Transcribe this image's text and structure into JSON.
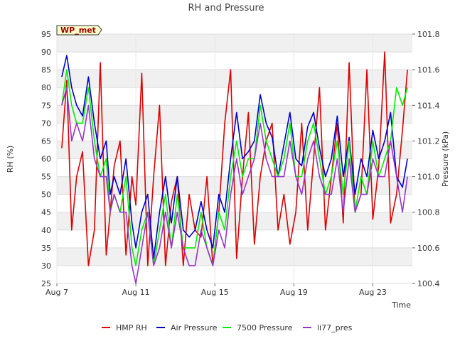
{
  "chart_data": {
    "type": "line",
    "title": "RH and Pressure",
    "badge": "WP_met",
    "xlabel": "Time",
    "ylabel_left": "RH (%)",
    "ylabel_right": "Pressure (kPa)",
    "x_range_days": [
      7.0,
      25.0
    ],
    "x_ticks": [
      {
        "day": 7,
        "label": "Aug 7"
      },
      {
        "day": 11,
        "label": "Aug 11"
      },
      {
        "day": 15,
        "label": "Aug 15"
      },
      {
        "day": 19,
        "label": "Aug 19"
      },
      {
        "day": 23,
        "label": "Aug 23"
      }
    ],
    "ylim_left": [
      25,
      95
    ],
    "yticks_left": [
      25,
      30,
      35,
      40,
      45,
      50,
      55,
      60,
      65,
      70,
      75,
      80,
      85,
      90,
      95
    ],
    "ylim_right": [
      100.4,
      101.8
    ],
    "yticks_right": [
      100.4,
      100.6,
      100.8,
      101.0,
      101.2,
      101.4,
      101.6,
      101.8
    ],
    "grid": true,
    "legend_position": "bottom",
    "series": [
      {
        "name": "HMP RH",
        "axis": "left",
        "color": "#dd0000",
        "x": [
          7.25,
          7.5,
          7.75,
          8.0,
          8.3,
          8.6,
          8.9,
          9.2,
          9.5,
          9.7,
          9.9,
          10.2,
          10.5,
          10.8,
          11.0,
          11.3,
          11.6,
          11.9,
          12.2,
          12.5,
          12.8,
          13.1,
          13.4,
          13.7,
          14.0,
          14.3,
          14.6,
          14.9,
          15.2,
          15.5,
          15.8,
          16.1,
          16.4,
          16.7,
          17.0,
          17.3,
          17.6,
          17.9,
          18.2,
          18.5,
          18.8,
          19.1,
          19.4,
          19.7,
          20.0,
          20.3,
          20.6,
          20.9,
          21.2,
          21.5,
          21.8,
          22.1,
          22.4,
          22.7,
          23.0,
          23.3,
          23.6,
          23.9,
          24.2,
          24.5,
          24.75
        ],
        "y": [
          63,
          82,
          40,
          55,
          62,
          30,
          40,
          87,
          33,
          45,
          58,
          65,
          33,
          55,
          47,
          84,
          30,
          55,
          75,
          30,
          48,
          55,
          30,
          50,
          40,
          38,
          55,
          30,
          45,
          70,
          85,
          32,
          55,
          73,
          36,
          55,
          65,
          70,
          40,
          50,
          36,
          45,
          70,
          40,
          60,
          80,
          40,
          55,
          70,
          42,
          87,
          45,
          50,
          85,
          43,
          58,
          90,
          42,
          50,
          68,
          85
        ]
      },
      {
        "name": "Air Pressure",
        "axis": "left",
        "color": "#0000cc",
        "x": [
          7.25,
          7.5,
          7.75,
          8.0,
          8.3,
          8.6,
          8.9,
          9.2,
          9.5,
          9.7,
          9.9,
          10.2,
          10.5,
          10.8,
          11.0,
          11.3,
          11.6,
          11.9,
          12.2,
          12.5,
          12.8,
          13.1,
          13.4,
          13.7,
          14.0,
          14.3,
          14.6,
          14.9,
          15.2,
          15.5,
          15.8,
          16.1,
          16.4,
          16.7,
          17.0,
          17.3,
          17.6,
          17.9,
          18.2,
          18.5,
          18.8,
          19.1,
          19.4,
          19.7,
          20.0,
          20.3,
          20.6,
          20.9,
          21.2,
          21.5,
          21.8,
          22.1,
          22.4,
          22.7,
          23.0,
          23.3,
          23.6,
          23.9,
          24.2,
          24.5,
          24.75
        ],
        "y": [
          83,
          89,
          80,
          75,
          72,
          83,
          70,
          60,
          65,
          50,
          55,
          50,
          60,
          42,
          35,
          45,
          50,
          32,
          45,
          55,
          42,
          55,
          40,
          38,
          40,
          48,
          40,
          35,
          50,
          45,
          60,
          73,
          60,
          62,
          65,
          78,
          70,
          66,
          55,
          64,
          73,
          60,
          58,
          69,
          73,
          63,
          55,
          60,
          72,
          55,
          66,
          50,
          60,
          55,
          68,
          60,
          65,
          73,
          55,
          52,
          60
        ]
      },
      {
        "name": "7500 Pressure",
        "axis": "left",
        "color": "#00ee00",
        "x": [
          7.25,
          7.5,
          7.75,
          8.0,
          8.3,
          8.6,
          8.9,
          9.2,
          9.5,
          9.7,
          9.9,
          10.2,
          10.5,
          10.8,
          11.0,
          11.3,
          11.6,
          11.9,
          12.2,
          12.5,
          12.8,
          13.1,
          13.4,
          13.7,
          14.0,
          14.3,
          14.6,
          14.9,
          15.2,
          15.5,
          15.8,
          16.1,
          16.4,
          16.7,
          17.0,
          17.3,
          17.6,
          17.9,
          18.2,
          18.5,
          18.8,
          19.1,
          19.4,
          19.7,
          20.0,
          20.3,
          20.6,
          20.9,
          21.2,
          21.5,
          21.8,
          22.1,
          22.4,
          22.7,
          23.0,
          23.3,
          23.6,
          23.9,
          24.2,
          24.5,
          24.75
        ],
        "y": [
          75,
          85,
          75,
          70,
          70,
          80,
          65,
          55,
          60,
          45,
          50,
          45,
          55,
          35,
          30,
          40,
          45,
          30,
          40,
          50,
          35,
          50,
          35,
          35,
          35,
          45,
          35,
          30,
          45,
          40,
          55,
          65,
          55,
          60,
          60,
          75,
          65,
          60,
          55,
          60,
          70,
          55,
          55,
          65,
          70,
          60,
          50,
          55,
          65,
          50,
          65,
          45,
          55,
          50,
          65,
          55,
          60,
          65,
          80,
          75,
          80
        ]
      },
      {
        "name": "li77_pres",
        "axis": "left",
        "color": "#9933cc",
        "x": [
          7.25,
          7.5,
          7.75,
          8.0,
          8.3,
          8.6,
          8.9,
          9.2,
          9.5,
          9.7,
          9.9,
          10.2,
          10.5,
          10.8,
          11.0,
          11.3,
          11.6,
          11.9,
          12.2,
          12.5,
          12.8,
          13.1,
          13.4,
          13.7,
          14.0,
          14.3,
          14.6,
          14.9,
          15.2,
          15.5,
          15.8,
          16.1,
          16.4,
          16.7,
          17.0,
          17.3,
          17.6,
          17.9,
          18.2,
          18.5,
          18.8,
          19.1,
          19.4,
          19.7,
          20.0,
          20.3,
          20.6,
          20.9,
          21.2,
          21.5,
          21.8,
          22.1,
          22.4,
          22.7,
          23.0,
          23.3,
          23.6,
          23.9,
          24.2,
          24.5,
          24.75
        ],
        "y": [
          75,
          80,
          65,
          70,
          65,
          75,
          60,
          55,
          55,
          45,
          50,
          45,
          45,
          30,
          25,
          35,
          45,
          30,
          35,
          45,
          35,
          45,
          35,
          30,
          30,
          40,
          35,
          30,
          40,
          35,
          50,
          60,
          50,
          55,
          60,
          70,
          60,
          55,
          55,
          55,
          65,
          55,
          50,
          60,
          65,
          55,
          50,
          50,
          60,
          45,
          60,
          45,
          50,
          50,
          60,
          55,
          55,
          65,
          55,
          45,
          55
        ]
      }
    ]
  }
}
